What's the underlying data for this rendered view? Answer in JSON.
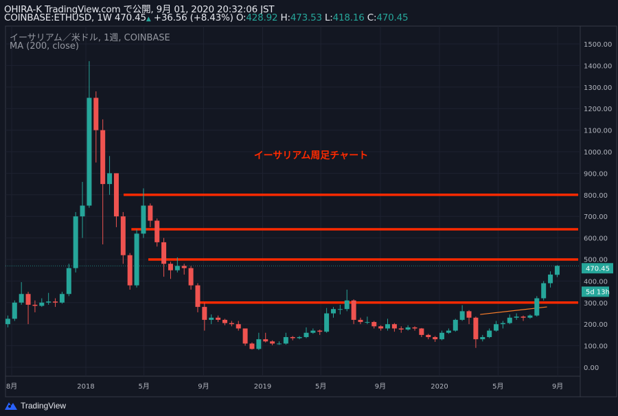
{
  "header": {
    "line1": "OHIRA-K TradingView.com で公開, 9月 01, 2020 20:32:06 JST",
    "symbol": "COINBASE:ETHUSD, 1W 470.45",
    "change": "+36.56 (+8.43%)",
    "o_label": "O:",
    "o": "428.92",
    "h_label": "H:",
    "h": "473.53",
    "l_label": "L:",
    "l": "418.16",
    "c_label": "C:",
    "c": "470.45"
  },
  "legend": {
    "series_title": "イーサリアム／米ドル, 1週, COINBASE",
    "indicator": "MA (200, close)"
  },
  "annotation_text": "イーサリアム周足チャート",
  "last_price_label": "470.45",
  "countdown_label": "5d 13h",
  "brand": "TradingView",
  "colors": {
    "background": "#131722",
    "up": "#26a69a",
    "down": "#ef5350",
    "annotation": "#ff2a00",
    "trendline": "#ff7f2a"
  },
  "chart_data": {
    "type": "candlestick",
    "symbol": "COINBASE:ETHUSD",
    "interval": "1W",
    "ylim": [
      -50,
      1560
    ],
    "y_ticks": [
      "0.00",
      "100.00",
      "200.00",
      "300.00",
      "400.00",
      "500.00",
      "600.00",
      "700.00",
      "800.00",
      "900.00",
      "1000.00",
      "1100.00",
      "1200.00",
      "1300.00",
      "1400.00",
      "1500.00"
    ],
    "x_ticks": [
      {
        "date": "2017-08-01",
        "label": "8月"
      },
      {
        "date": "2018-01-01",
        "label": "2018"
      },
      {
        "date": "2018-05-01",
        "label": "5月"
      },
      {
        "date": "2018-09-01",
        "label": "9月"
      },
      {
        "date": "2019-01-01",
        "label": "2019"
      },
      {
        "date": "2019-05-01",
        "label": "5月"
      },
      {
        "date": "2019-09-01",
        "label": "9月"
      },
      {
        "date": "2020-01-01",
        "label": "2020"
      },
      {
        "date": "2020-05-01",
        "label": "5月"
      },
      {
        "date": "2020-09-01",
        "label": "9月"
      }
    ],
    "grid": true,
    "last_price": 470.45,
    "horizontal_lines": [
      {
        "price": 800,
        "from": "2018-03-20"
      },
      {
        "price": 640,
        "from": "2018-04-05"
      },
      {
        "price": 500,
        "from": "2018-05-10"
      },
      {
        "price": 300,
        "from": "2018-08-20"
      }
    ],
    "trendline": {
      "from": [
        "2020-03-25",
        245
      ],
      "to": [
        "2020-08-10",
        280
      ]
    },
    "candles": [
      [
        "2017-07-24",
        200,
        240,
        185,
        225
      ],
      [
        "2017-08-07",
        225,
        310,
        215,
        300
      ],
      [
        "2017-08-21",
        300,
        395,
        290,
        340
      ],
      [
        "2017-09-04",
        340,
        350,
        200,
        290
      ],
      [
        "2017-09-18",
        290,
        310,
        255,
        285
      ],
      [
        "2017-10-02",
        285,
        320,
        280,
        300
      ],
      [
        "2017-10-16",
        300,
        345,
        290,
        305
      ],
      [
        "2017-10-30",
        305,
        320,
        280,
        300
      ],
      [
        "2017-11-13",
        300,
        350,
        295,
        340
      ],
      [
        "2017-11-27",
        340,
        480,
        330,
        460
      ],
      [
        "2017-12-11",
        460,
        720,
        440,
        700
      ],
      [
        "2017-12-25",
        700,
        860,
        600,
        750
      ],
      [
        "2018-01-08",
        750,
        1420,
        740,
        1250
      ],
      [
        "2018-01-22",
        1250,
        1280,
        950,
        1100
      ],
      [
        "2018-02-05",
        1100,
        1150,
        570,
        850
      ],
      [
        "2018-02-19",
        850,
        980,
        800,
        900
      ],
      [
        "2018-03-05",
        900,
        900,
        650,
        700
      ],
      [
        "2018-03-19",
        700,
        720,
        480,
        520
      ],
      [
        "2018-04-02",
        520,
        530,
        360,
        380
      ],
      [
        "2018-04-16",
        380,
        640,
        370,
        620
      ],
      [
        "2018-04-30",
        620,
        830,
        600,
        750
      ],
      [
        "2018-05-14",
        750,
        760,
        650,
        680
      ],
      [
        "2018-05-28",
        680,
        690,
        560,
        580
      ],
      [
        "2018-06-11",
        580,
        600,
        420,
        480
      ],
      [
        "2018-06-25",
        480,
        490,
        410,
        450
      ],
      [
        "2018-07-09",
        450,
        510,
        440,
        470
      ],
      [
        "2018-07-23",
        470,
        480,
        430,
        460
      ],
      [
        "2018-08-06",
        460,
        470,
        360,
        380
      ],
      [
        "2018-08-20",
        380,
        390,
        255,
        280
      ],
      [
        "2018-09-03",
        280,
        300,
        170,
        220
      ],
      [
        "2018-09-17",
        220,
        245,
        200,
        230
      ],
      [
        "2018-10-01",
        230,
        240,
        210,
        220
      ],
      [
        "2018-10-15",
        220,
        225,
        195,
        205
      ],
      [
        "2018-10-29",
        205,
        215,
        190,
        200
      ],
      [
        "2018-11-12",
        200,
        215,
        170,
        180
      ],
      [
        "2018-11-26",
        180,
        180,
        100,
        110
      ],
      [
        "2018-12-10",
        110,
        115,
        82,
        85
      ],
      [
        "2018-12-24",
        85,
        160,
        80,
        130
      ],
      [
        "2019-01-07",
        130,
        160,
        115,
        120
      ],
      [
        "2019-01-21",
        120,
        125,
        102,
        110
      ],
      [
        "2019-02-04",
        110,
        120,
        104,
        110
      ],
      [
        "2019-02-18",
        110,
        160,
        105,
        140
      ],
      [
        "2019-03-04",
        140,
        145,
        125,
        135
      ],
      [
        "2019-03-18",
        135,
        145,
        130,
        140
      ],
      [
        "2019-04-01",
        140,
        185,
        135,
        160
      ],
      [
        "2019-04-15",
        160,
        180,
        155,
        170
      ],
      [
        "2019-04-29",
        170,
        175,
        150,
        165
      ],
      [
        "2019-05-13",
        165,
        275,
        160,
        250
      ],
      [
        "2019-05-27",
        250,
        280,
        230,
        270
      ],
      [
        "2019-06-10",
        270,
        290,
        245,
        270
      ],
      [
        "2019-06-24",
        270,
        360,
        260,
        310
      ],
      [
        "2019-07-08",
        310,
        315,
        200,
        220
      ],
      [
        "2019-07-22",
        220,
        230,
        200,
        210
      ],
      [
        "2019-08-05",
        210,
        235,
        200,
        210
      ],
      [
        "2019-08-19",
        210,
        215,
        180,
        190
      ],
      [
        "2019-09-02",
        190,
        195,
        170,
        180
      ],
      [
        "2019-09-16",
        180,
        225,
        170,
        200
      ],
      [
        "2019-09-30",
        200,
        205,
        165,
        180
      ],
      [
        "2019-10-14",
        180,
        190,
        160,
        175
      ],
      [
        "2019-10-28",
        175,
        195,
        170,
        185
      ],
      [
        "2019-11-11",
        185,
        190,
        170,
        180
      ],
      [
        "2019-11-25",
        180,
        182,
        140,
        150
      ],
      [
        "2019-12-09",
        150,
        155,
        130,
        140
      ],
      [
        "2019-12-23",
        140,
        145,
        118,
        130
      ],
      [
        "2020-01-06",
        130,
        170,
        125,
        160
      ],
      [
        "2020-01-20",
        160,
        180,
        155,
        170
      ],
      [
        "2020-02-03",
        170,
        225,
        165,
        220
      ],
      [
        "2020-02-17",
        220,
        288,
        215,
        260
      ],
      [
        "2020-03-02",
        260,
        265,
        200,
        230
      ],
      [
        "2020-03-16",
        230,
        235,
        90,
        130
      ],
      [
        "2020-03-30",
        130,
        150,
        120,
        140
      ],
      [
        "2020-04-13",
        140,
        180,
        135,
        170
      ],
      [
        "2020-04-27",
        170,
        215,
        165,
        200
      ],
      [
        "2020-05-11",
        200,
        215,
        180,
        205
      ],
      [
        "2020-05-25",
        205,
        245,
        200,
        230
      ],
      [
        "2020-06-08",
        230,
        250,
        220,
        235
      ],
      [
        "2020-06-22",
        235,
        240,
        215,
        230
      ],
      [
        "2020-07-06",
        230,
        245,
        225,
        240
      ],
      [
        "2020-07-20",
        240,
        330,
        235,
        320
      ],
      [
        "2020-08-03",
        320,
        400,
        310,
        390
      ],
      [
        "2020-08-17",
        390,
        445,
        370,
        430
      ],
      [
        "2020-08-31",
        428.92,
        473.53,
        418.16,
        470.45
      ]
    ]
  }
}
